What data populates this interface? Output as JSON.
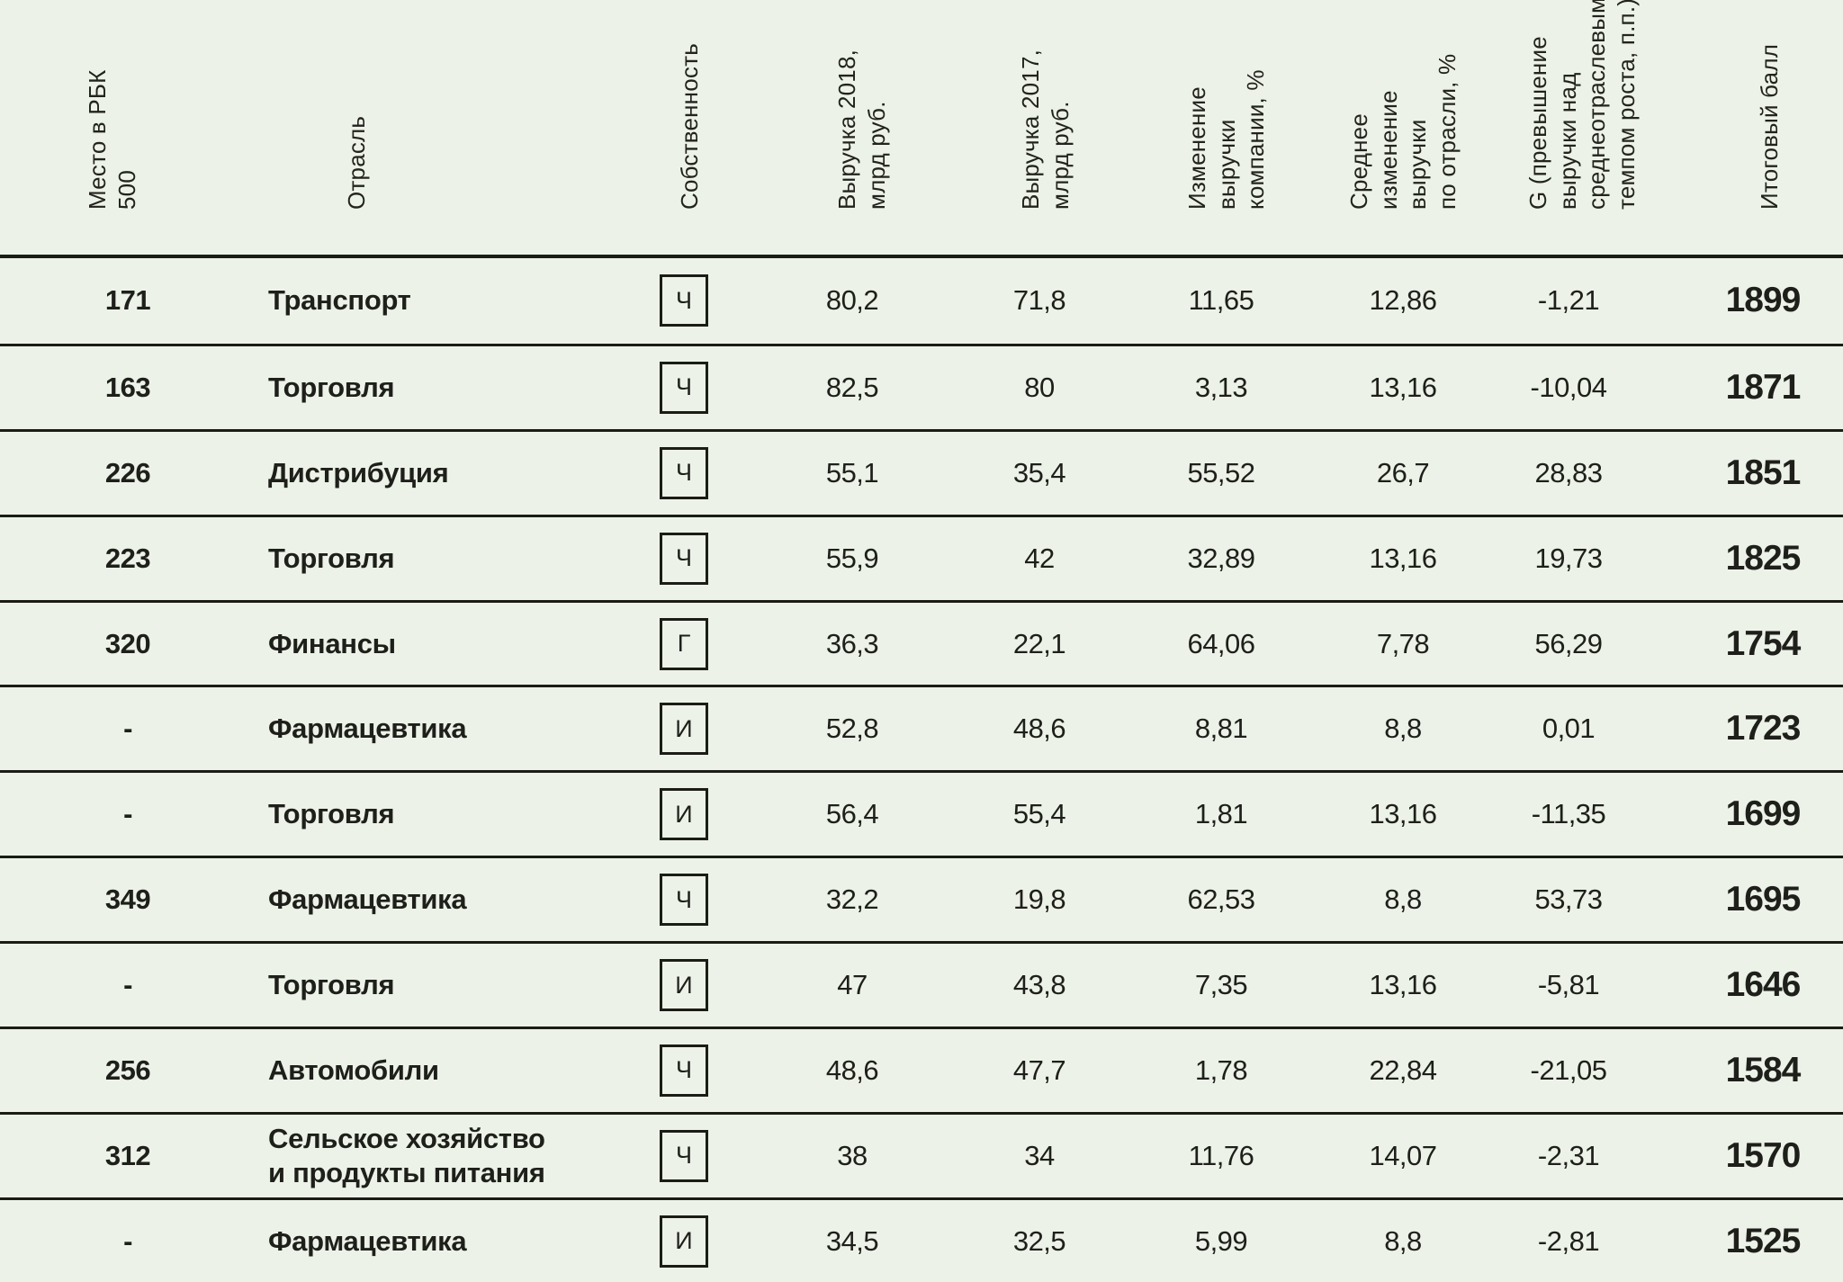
{
  "colors": {
    "background": "#ECF2E7",
    "text": "#1E1F1A",
    "line": "#1B1C16"
  },
  "table": {
    "headers": [
      {
        "id": "place",
        "label": "Место в РБК\n500"
      },
      {
        "id": "industry",
        "label": "Отрасль"
      },
      {
        "id": "ownership",
        "label": "Собственность"
      },
      {
        "id": "rev2018",
        "label": "Выручка 2018,\nмлрд руб."
      },
      {
        "id": "rev2017",
        "label": "Выручка 2017,\nмлрд руб."
      },
      {
        "id": "change",
        "label": "Изменение\nвыручки\nкомпании, %"
      },
      {
        "id": "industry_avg",
        "label": "Среднее\nизменение\nвыручки\nпо отрасли, %"
      },
      {
        "id": "g",
        "label": "G (превышение\nвыручки над\nсреднеотраслевым\nтемпом роста, п.п.)"
      },
      {
        "id": "score",
        "label": "Итоговый балл"
      }
    ],
    "rows": [
      {
        "place": "171",
        "industry": "Транспорт",
        "ownership": "Ч",
        "rev2018": "80,2",
        "rev2017": "71,8",
        "change": "11,65",
        "industry_avg": "12,86",
        "g": "-1,21",
        "score": "1899"
      },
      {
        "place": "163",
        "industry": "Торговля",
        "ownership": "Ч",
        "rev2018": "82,5",
        "rev2017": "80",
        "change": "3,13",
        "industry_avg": "13,16",
        "g": "-10,04",
        "score": "1871"
      },
      {
        "place": "226",
        "industry": "Дистрибуция",
        "ownership": "Ч",
        "rev2018": "55,1",
        "rev2017": "35,4",
        "change": "55,52",
        "industry_avg": "26,7",
        "g": "28,83",
        "score": "1851"
      },
      {
        "place": "223",
        "industry": "Торговля",
        "ownership": "Ч",
        "rev2018": "55,9",
        "rev2017": "42",
        "change": "32,89",
        "industry_avg": "13,16",
        "g": "19,73",
        "score": "1825"
      },
      {
        "place": "320",
        "industry": "Финансы",
        "ownership": "Г",
        "rev2018": "36,3",
        "rev2017": "22,1",
        "change": "64,06",
        "industry_avg": "7,78",
        "g": "56,29",
        "score": "1754"
      },
      {
        "place": "-",
        "industry": "Фармацевтика",
        "ownership": "И",
        "rev2018": "52,8",
        "rev2017": "48,6",
        "change": "8,81",
        "industry_avg": "8,8",
        "g": "0,01",
        "score": "1723"
      },
      {
        "place": "-",
        "industry": "Торговля",
        "ownership": "И",
        "rev2018": "56,4",
        "rev2017": "55,4",
        "change": "1,81",
        "industry_avg": "13,16",
        "g": "-11,35",
        "score": "1699"
      },
      {
        "place": "349",
        "industry": "Фармацевтика",
        "ownership": "Ч",
        "rev2018": "32,2",
        "rev2017": "19,8",
        "change": "62,53",
        "industry_avg": "8,8",
        "g": "53,73",
        "score": "1695"
      },
      {
        "place": "-",
        "industry": "Торговля",
        "ownership": "И",
        "rev2018": "47",
        "rev2017": "43,8",
        "change": "7,35",
        "industry_avg": "13,16",
        "g": "-5,81",
        "score": "1646"
      },
      {
        "place": "256",
        "industry": "Автомобили",
        "ownership": "Ч",
        "rev2018": "48,6",
        "rev2017": "47,7",
        "change": "1,78",
        "industry_avg": "22,84",
        "g": "-21,05",
        "score": "1584"
      },
      {
        "place": "312",
        "industry": "Сельское хозяйство\nи продукты питания",
        "ownership": "Ч",
        "rev2018": "38",
        "rev2017": "34",
        "change": "11,76",
        "industry_avg": "14,07",
        "g": "-2,31",
        "score": "1570"
      },
      {
        "place": "-",
        "industry": "Фармацевтика",
        "ownership": "И",
        "rev2018": "34,5",
        "rev2017": "32,5",
        "change": "5,99",
        "industry_avg": "8,8",
        "g": "-2,81",
        "score": "1525"
      }
    ]
  }
}
